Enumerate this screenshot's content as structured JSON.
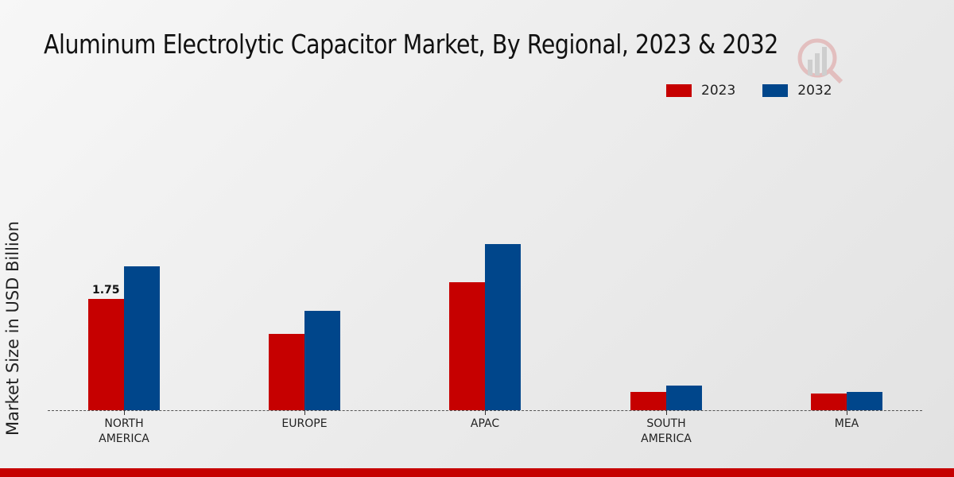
{
  "title": "Aluminum Electrolytic Capacitor Market, By Regional, 2023 & 2032",
  "legend": [
    {
      "label": "2023",
      "color": "#c60000"
    },
    {
      "label": "2032",
      "color": "#00468b"
    }
  ],
  "yaxis_label": "Market Size in USD Billion",
  "data_label_na_2023": "1.75",
  "categories_display": [
    "NORTH\nAMERICA",
    "EUROPE",
    "APAC",
    "SOUTH\nAMERICA",
    "MEA"
  ],
  "chart_data": {
    "type": "bar",
    "title": "Aluminum Electrolytic Capacitor Market, By Regional, 2023 & 2032",
    "xlabel": "",
    "ylabel": "Market Size in USD Billion",
    "categories": [
      "NORTH AMERICA",
      "EUROPE",
      "APAC",
      "SOUTH AMERICA",
      "MEA"
    ],
    "series": [
      {
        "name": "2023",
        "color": "#c60000",
        "values": [
          1.75,
          1.2,
          2.01,
          0.29,
          0.26
        ]
      },
      {
        "name": "2032",
        "color": "#00468b",
        "values": [
          2.26,
          1.56,
          2.61,
          0.39,
          0.29
        ]
      }
    ],
    "annotations": [
      {
        "category": "NORTH AMERICA",
        "series": "2023",
        "text": "1.75"
      }
    ],
    "legend_position": "top-right",
    "grid": false,
    "ylim": [
      0,
      3.0
    ]
  }
}
